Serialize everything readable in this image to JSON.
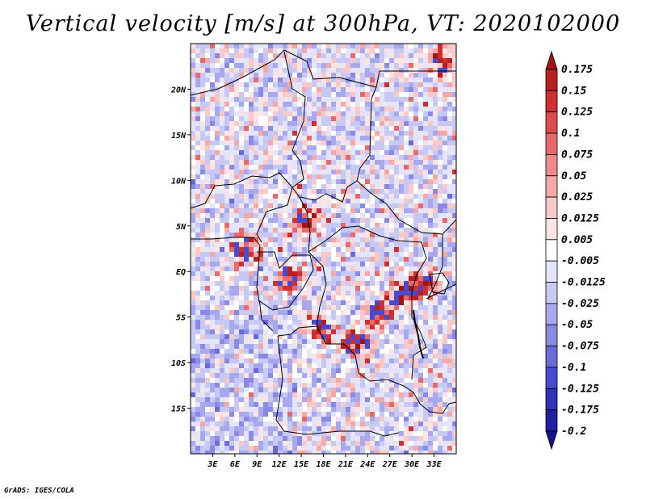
{
  "title": "Vertical velocity [m/s] at 300hPa, VT: 2020102000",
  "footer": "GrADS: IGES/COLA",
  "map": {
    "variable": "Vertical velocity",
    "units": "m/s",
    "level": "300hPa",
    "valid_time": "2020102000",
    "lat_range": [
      -20,
      25
    ],
    "lon_range": [
      0,
      36
    ],
    "lat_ticks": [
      {
        "value": 20,
        "label": "20N"
      },
      {
        "value": 15,
        "label": "15N"
      },
      {
        "value": 10,
        "label": "10N"
      },
      {
        "value": 5,
        "label": "5N"
      },
      {
        "value": 0,
        "label": "EQ"
      },
      {
        "value": -5,
        "label": "5S"
      },
      {
        "value": -10,
        "label": "10S"
      },
      {
        "value": -15,
        "label": "15S"
      }
    ],
    "lon_ticks": [
      {
        "value": 3,
        "label": "3E"
      },
      {
        "value": 6,
        "label": "6E"
      },
      {
        "value": 9,
        "label": "9E"
      },
      {
        "value": 12,
        "label": "12E"
      },
      {
        "value": 15,
        "label": "15E"
      },
      {
        "value": 18,
        "label": "18E"
      },
      {
        "value": 21,
        "label": "21E"
      },
      {
        "value": 24,
        "label": "24E"
      },
      {
        "value": 27,
        "label": "27E"
      },
      {
        "value": 30,
        "label": "30E"
      },
      {
        "value": 33,
        "label": "33E"
      }
    ]
  },
  "colorbar": {
    "labels": [
      "0.175",
      "0.15",
      "0.125",
      "0.1",
      "0.075",
      "0.05",
      "0.025",
      "0.0125",
      "0.005",
      "-0.005",
      "-0.0125",
      "-0.025",
      "-0.05",
      "-0.075",
      "-0.1",
      "-0.125",
      "-0.175",
      "-0.2"
    ],
    "colors": [
      "#a01414",
      "#b82020",
      "#cc3030",
      "#dd4c4c",
      "#e66a6a",
      "#ee8a8a",
      "#f4a8a8",
      "#f9c8c8",
      "#fde4e4",
      "#ffffff",
      "#e4e4fb",
      "#c8c8f5",
      "#a8a8ee",
      "#8a8ae4",
      "#6a6ad8",
      "#4a4acc",
      "#3030b8",
      "#2020a0",
      "#14148a"
    ]
  }
}
